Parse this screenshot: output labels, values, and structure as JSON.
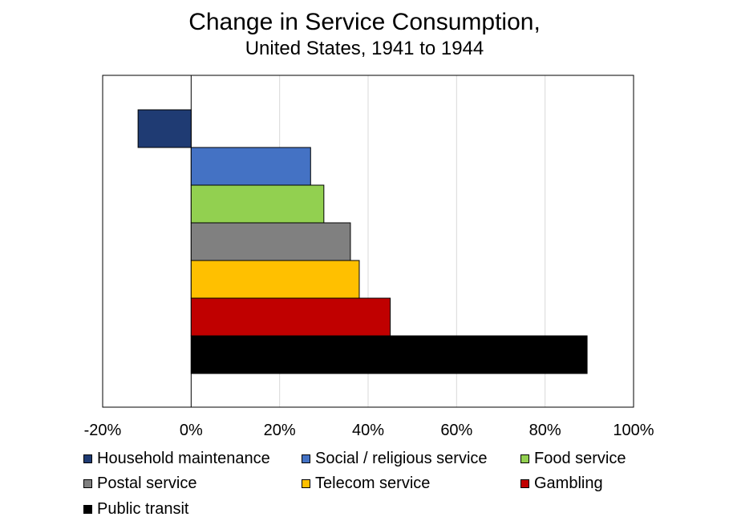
{
  "chart_data": {
    "type": "bar",
    "orientation": "horizontal",
    "title": "Change in Service Consumption,",
    "subtitle": "United States, 1941 to 1944",
    "xlim": [
      -20,
      100
    ],
    "x_ticks": [
      "-20%",
      "0%",
      "20%",
      "40%",
      "60%",
      "80%",
      "100%"
    ],
    "grid": true,
    "legend_position": "bottom",
    "series": [
      {
        "name": "Household maintenance",
        "value": -12,
        "color": "#1f3b73"
      },
      {
        "name": "Social / religious service",
        "value": 27,
        "color": "#4472c4"
      },
      {
        "name": "Food service",
        "value": 30,
        "color": "#92d050"
      },
      {
        "name": "Postal service",
        "value": 36,
        "color": "#808080"
      },
      {
        "name": "Telecom service",
        "value": 38,
        "color": "#ffc000"
      },
      {
        "name": "Gambling",
        "value": 45,
        "color": "#c00000"
      },
      {
        "name": "Public transit",
        "value": 89.5,
        "color": "#000000"
      }
    ]
  }
}
